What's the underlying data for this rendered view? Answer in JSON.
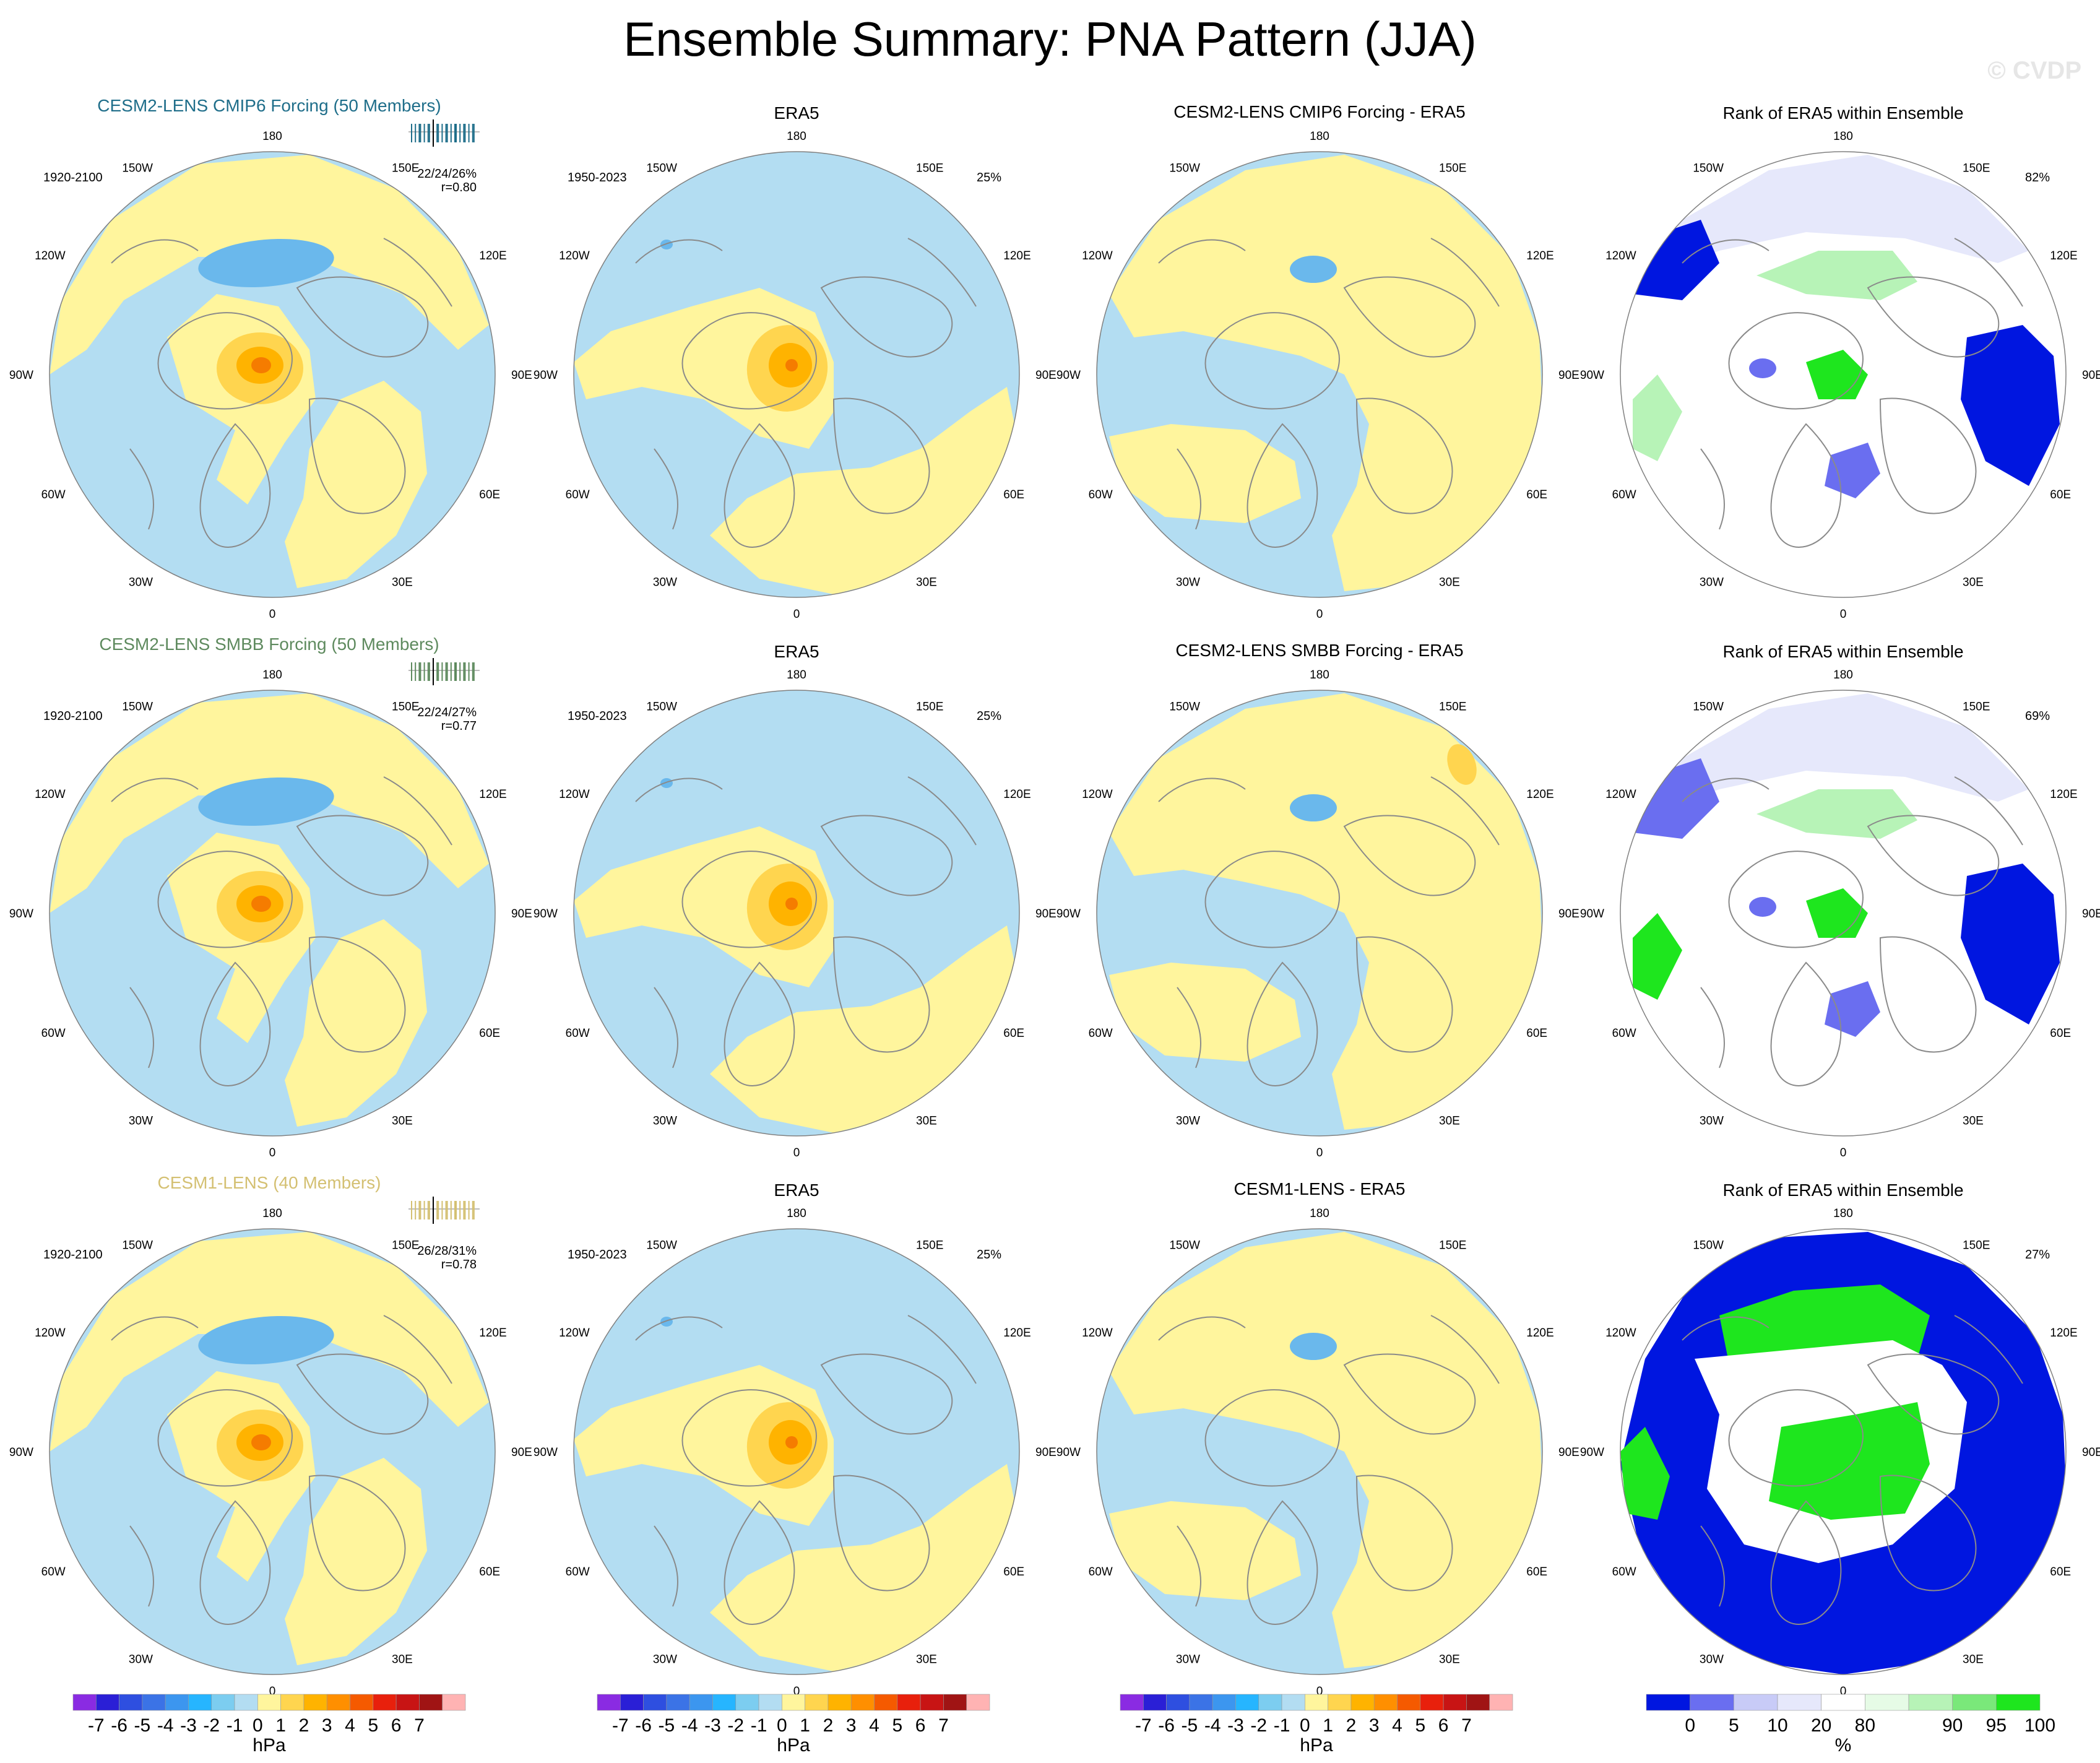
{
  "title": "Ensemble Summary: PNA Pattern (JJA)",
  "watermark": "© CVDP",
  "colors": {
    "ocean_blue": "#b3ddf2",
    "land_yellow": "#fff59d",
    "orange_light": "#ffd54f",
    "orange": "#ffb300",
    "orange_dark": "#f57c00",
    "rank_dark_blue": "#0016e0",
    "rank_mid_blue": "#6a6ef0",
    "rank_light_blue": "#c8cbf7",
    "rank_pale_blue": "#e6e8fb",
    "rank_pale_green": "#e6fbe6",
    "rank_light_green": "#b7f3b7",
    "rank_green": "#7ae87a",
    "rank_bright_green": "#1ee61e",
    "model_title_1": "#1f6e8a",
    "model_title_2": "#5e8a5e",
    "model_title_3": "#d4c072"
  },
  "coord_labels": [
    "180",
    "150E",
    "120E",
    "90E",
    "60E",
    "30E",
    "0",
    "30W",
    "60W",
    "90W",
    "120W",
    "150W"
  ],
  "rows": [
    {
      "model": {
        "title": "CESM2-LENS CMIP6 Forcing (50 Members)",
        "period": "1920-2100",
        "stats": "22/24/26%",
        "r": "r=0.80",
        "pattern": "cmip6"
      },
      "era5": {
        "title": "ERA5",
        "period": "1950-2023",
        "pct": "25%"
      },
      "diff": {
        "title": "CESM2-LENS CMIP6 Forcing - ERA5",
        "pattern": "diff1"
      },
      "rank": {
        "title": "Rank of ERA5 within Ensemble",
        "pct": "82%",
        "pattern": "rank1"
      }
    },
    {
      "model": {
        "title": "CESM2-LENS SMBB Forcing (50 Members)",
        "period": "1920-2100",
        "stats": "22/24/27%",
        "r": "r=0.77",
        "pattern": "smbb"
      },
      "era5": {
        "title": "ERA5",
        "period": "1950-2023",
        "pct": "25%"
      },
      "diff": {
        "title": "CESM2-LENS SMBB Forcing - ERA5",
        "pattern": "diff2"
      },
      "rank": {
        "title": "Rank of ERA5 within Ensemble",
        "pct": "69%",
        "pattern": "rank2"
      }
    },
    {
      "model": {
        "title": "CESM1-LENS (40 Members)",
        "period": "1920-2100",
        "stats": "26/28/31%",
        "r": "r=0.78",
        "pattern": "cesm1"
      },
      "era5": {
        "title": "ERA5",
        "period": "1950-2023",
        "pct": "25%"
      },
      "diff": {
        "title": "CESM1-LENS - ERA5",
        "pattern": "diff3"
      },
      "rank": {
        "title": "Rank of ERA5 within Ensemble",
        "pct": "27%",
        "pattern": "rank3"
      }
    }
  ],
  "colorbar_hpa": {
    "units": "hPa",
    "labels": [
      "-7",
      "-6",
      "-5",
      "-4",
      "-3",
      "-2",
      "-1",
      "0",
      "1",
      "2",
      "3",
      "4",
      "5",
      "6",
      "7"
    ],
    "colors": [
      "#8a2be2",
      "#2a1fd6",
      "#2e4fe0",
      "#3b73e6",
      "#3c96ef",
      "#26b5ff",
      "#7ccdf0",
      "#b3ddf2",
      "#fff59d",
      "#ffd54f",
      "#ffb300",
      "#ff8f00",
      "#f55a00",
      "#e8200c",
      "#c81414",
      "#a01414",
      "#ffb3b3"
    ]
  },
  "colorbar_rank": {
    "units": "%",
    "labels": [
      "0",
      "5",
      "10",
      "20",
      "80",
      "90",
      "95",
      "100"
    ],
    "colors": [
      "#0016e0",
      "#6a6ef0",
      "#c8cbf7",
      "#e6e8fb",
      "#ffffff",
      "#e6fbe6",
      "#b7f3b7",
      "#7ae87a",
      "#1ee61e"
    ]
  }
}
